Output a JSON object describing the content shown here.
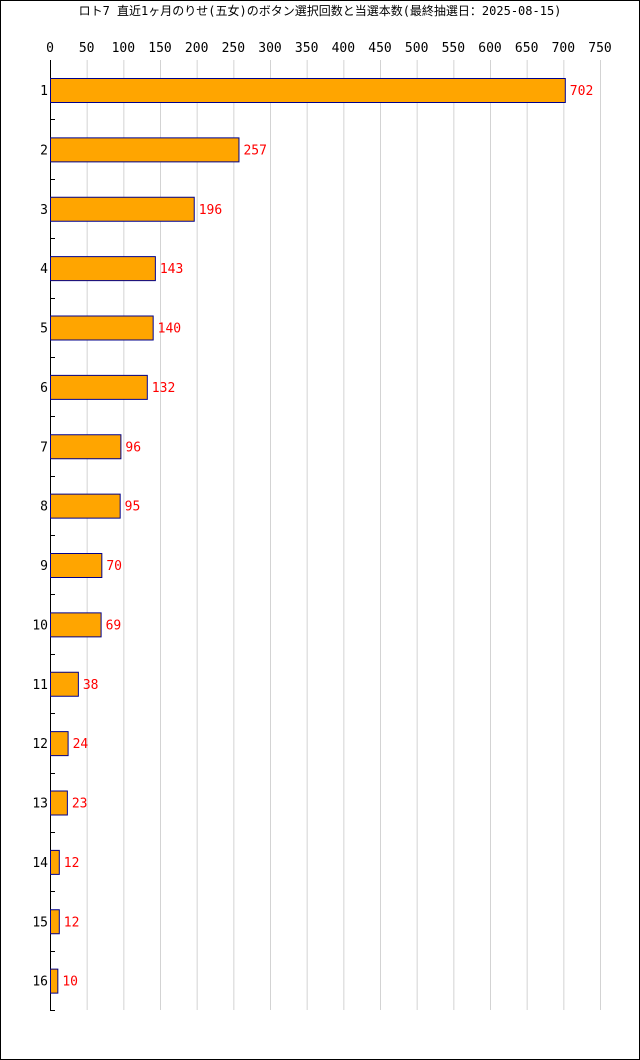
{
  "chart_data": {
    "type": "bar",
    "orientation": "horizontal",
    "title": "ロト7 直近1ヶ月のりせ(五女)のボタン選択回数と当選本数(最終抽選日：2025-08-15)",
    "xlabel": "",
    "ylabel": "",
    "xlim": [
      0,
      750
    ],
    "x_ticks": [
      "0",
      "50",
      "100",
      "150",
      "200",
      "250",
      "300",
      "350",
      "400",
      "450",
      "500",
      "550",
      "600",
      "650",
      "700",
      "750"
    ],
    "x_tick_values": [
      0,
      50,
      100,
      150,
      200,
      250,
      300,
      350,
      400,
      450,
      500,
      550,
      600,
      650,
      700,
      750
    ],
    "x_axis_position": "top",
    "grid": true,
    "categories": [
      "1",
      "2",
      "3",
      "4",
      "5",
      "6",
      "7",
      "8",
      "9",
      "10",
      "11",
      "12",
      "13",
      "14",
      "15",
      "16"
    ],
    "values": [
      702,
      257,
      196,
      143,
      140,
      132,
      96,
      95,
      70,
      69,
      38,
      24,
      23,
      12,
      12,
      10
    ],
    "data_labels": [
      "702",
      "257",
      "196",
      "143",
      "140",
      "132",
      "96",
      "95",
      "70",
      "69",
      "38",
      "24",
      "23",
      "12",
      "12",
      "10"
    ],
    "colors": {
      "bar_fill": "#FFA500",
      "bar_stroke": "#00008B",
      "data_label": "#FF0000",
      "grid": "#D3D3D3",
      "axis": "#000000"
    }
  }
}
